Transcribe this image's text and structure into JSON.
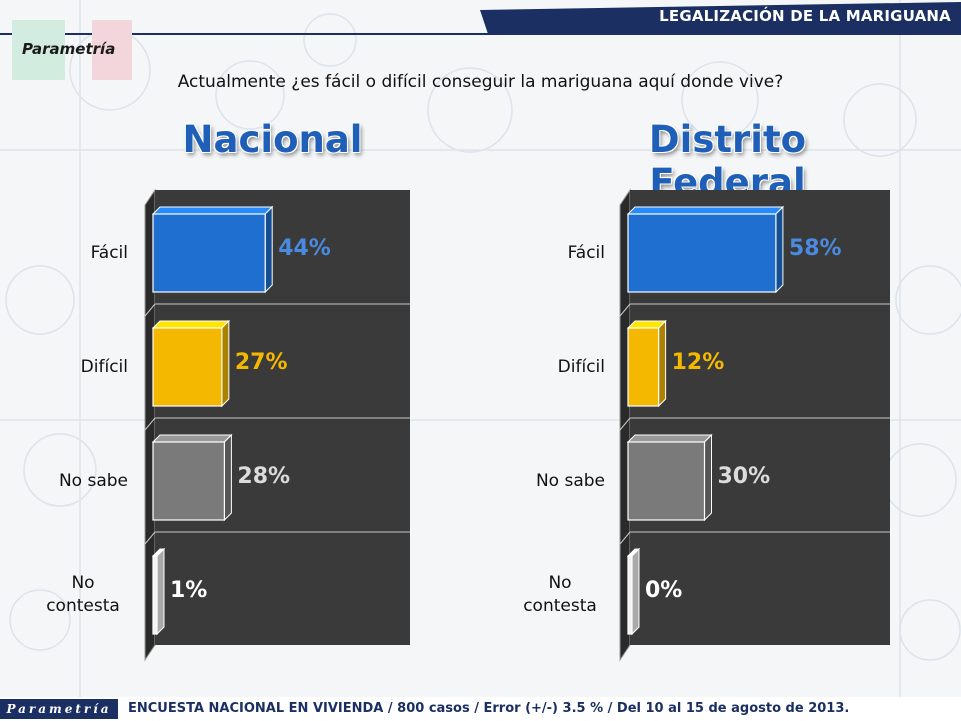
{
  "header": {
    "title": "LEGALIZACIÓN DE LA MARIGUANA"
  },
  "brand": {
    "name": "Parametría"
  },
  "question": "Actualmente ¿es fácil o difícil conseguir la mariguana aquí donde vive?",
  "colors": {
    "header_bar": "#1b2f63",
    "panel": "#3a3a3a",
    "blue": "#1f6fd0",
    "yellow": "#f5b800",
    "gray": "#7a7a7a",
    "white": "#f2f2f2",
    "title": "#1f5fb8"
  },
  "chart_data": [
    {
      "type": "bar",
      "orientation": "horizontal",
      "title": "Nacional",
      "categories": [
        "Fácil",
        "Difícil",
        "No sabe",
        "No contesta"
      ],
      "values": [
        44,
        27,
        28,
        1
      ],
      "value_labels": [
        "44%",
        "27%",
        "28%",
        "1%"
      ],
      "label_colors": [
        "#4a8ae0",
        "#f5b800",
        "#dcdcdc",
        "#ffffff"
      ],
      "bar_colors": [
        "#1f6fd0",
        "#f5b800",
        "#7a7a7a",
        "#f2f2f2"
      ],
      "xlim": [
        0,
        100
      ],
      "grid": false,
      "legend": "none"
    },
    {
      "type": "bar",
      "orientation": "horizontal",
      "title": "Distrito Federal",
      "categories": [
        "Fácil",
        "Difícil",
        "No sabe",
        "No contesta"
      ],
      "values": [
        58,
        12,
        30,
        0
      ],
      "value_labels": [
        "58%",
        "12%",
        "30%",
        "0%"
      ],
      "label_colors": [
        "#4a8ae0",
        "#f5b800",
        "#dcdcdc",
        "#ffffff"
      ],
      "bar_colors": [
        "#1f6fd0",
        "#f5b800",
        "#7a7a7a",
        "#f2f2f2"
      ],
      "xlim": [
        0,
        100
      ],
      "grid": false,
      "legend": "none"
    }
  ],
  "footer": {
    "logo": "Parametría",
    "text": "ENCUESTA NACIONAL EN VIVIENDA / 800 casos / Error (+/-) 3.5 % / Del 10 al 15 de agosto de 2013."
  }
}
